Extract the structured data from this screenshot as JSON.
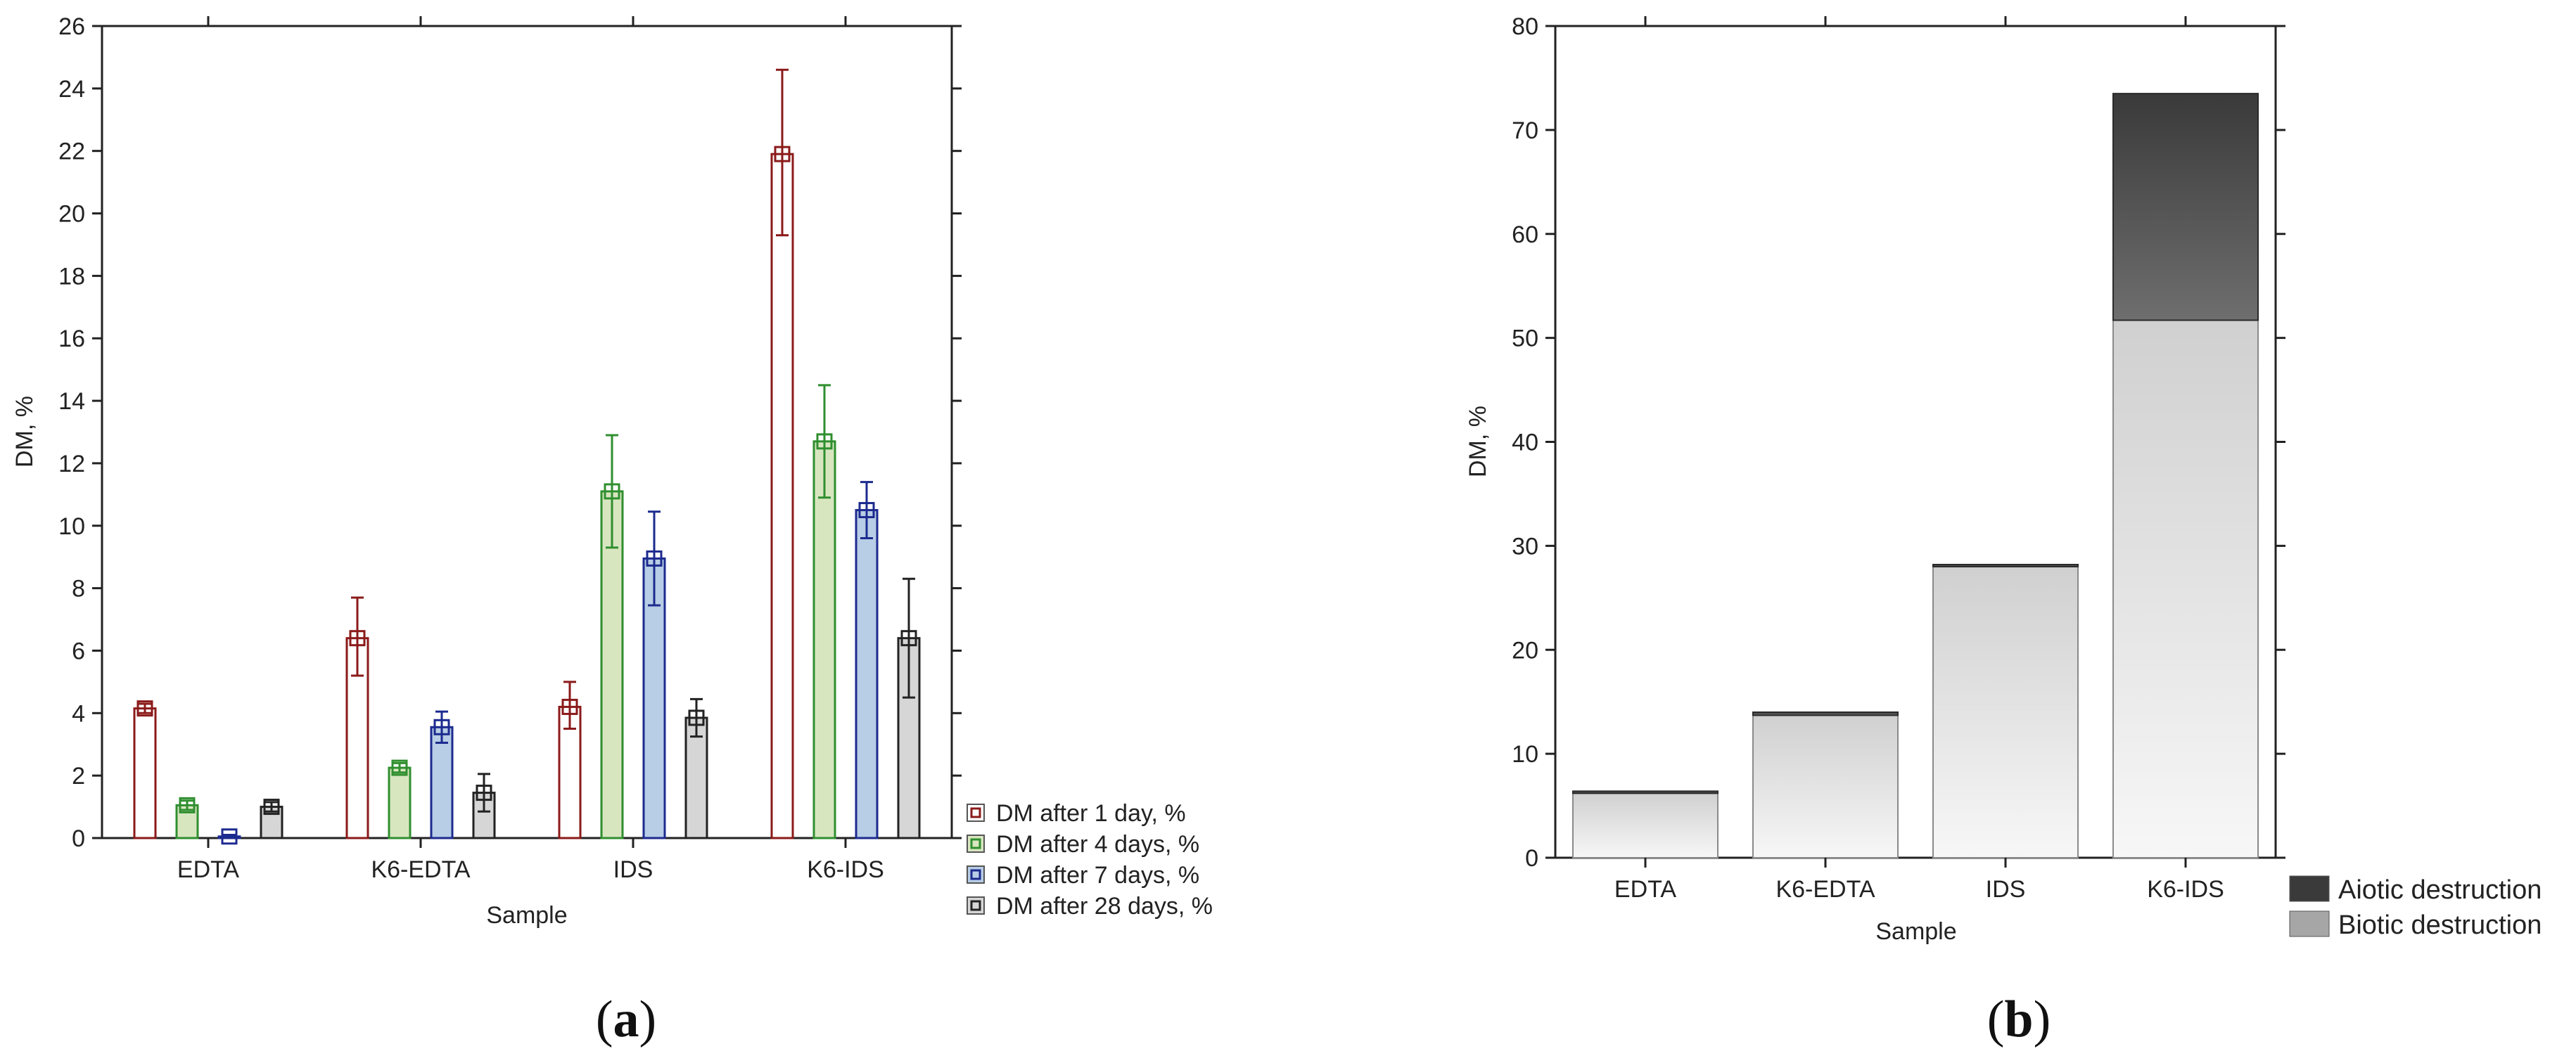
{
  "chart_data": [
    {
      "type": "bar",
      "panel_label": "a",
      "xlabel": "Sample",
      "ylabel": "DM, %",
      "ylim": [
        0,
        26
      ],
      "y_ticks": [
        "0",
        "2",
        "4",
        "6",
        "8",
        "10",
        "12",
        "14",
        "16",
        "18",
        "20",
        "22",
        "24",
        "26"
      ],
      "categories": [
        "EDTA",
        "K6-EDTA",
        "IDS",
        "K6-IDS"
      ],
      "error_bars": true,
      "legend_position": "right",
      "series": [
        {
          "name": "DM after 1 day, %",
          "values": [
            4.15,
            6.4,
            4.2,
            21.9
          ],
          "err_low": [
            0.15,
            1.2,
            0.7,
            2.6
          ],
          "err_high": [
            0.15,
            1.3,
            0.8,
            2.7
          ],
          "edge_color": "#8b1a1a",
          "fill_color": "#ffffff"
        },
        {
          "name": "DM after 4 days, %",
          "values": [
            1.05,
            2.25,
            11.1,
            12.7
          ],
          "err_low": [
            0.15,
            0.15,
            1.8,
            1.8
          ],
          "err_high": [
            0.15,
            0.15,
            1.8,
            1.8
          ],
          "edge_color": "#2f8f2f",
          "fill_color": "#d8e6c0"
        },
        {
          "name": "DM after 7 days, %",
          "values": [
            0.05,
            3.55,
            8.95,
            10.5
          ],
          "err_low": [
            0.05,
            0.5,
            1.5,
            0.9
          ],
          "err_high": [
            0.05,
            0.5,
            1.5,
            0.9
          ],
          "edge_color": "#1c2b8f",
          "fill_color": "#b8cde6"
        },
        {
          "name": "DM after 28 days, %",
          "values": [
            1.0,
            1.45,
            3.85,
            6.4
          ],
          "err_low": [
            0.15,
            0.6,
            0.6,
            1.9
          ],
          "err_high": [
            0.15,
            0.6,
            0.6,
            1.9
          ],
          "edge_color": "#222222",
          "fill_color": "#d6d6d6"
        }
      ]
    },
    {
      "type": "bar",
      "stacked": true,
      "panel_label": "b",
      "xlabel": "Sample",
      "ylabel": "DM, %",
      "ylim": [
        0,
        80
      ],
      "y_ticks": [
        "0",
        "10",
        "20",
        "30",
        "40",
        "50",
        "60",
        "70",
        "80"
      ],
      "categories": [
        "EDTA",
        "K6-EDTA",
        "IDS",
        "K6-IDS"
      ],
      "legend_position": "bottom-right",
      "series": [
        {
          "name": "Biotic destruction",
          "values": [
            6.2,
            13.7,
            28.0,
            51.7
          ],
          "color": "#a6a6a6"
        },
        {
          "name": "Aiotic destruction",
          "values": [
            0.2,
            0.3,
            0.2,
            21.8
          ],
          "color": "#3a3a3a"
        }
      ]
    }
  ]
}
